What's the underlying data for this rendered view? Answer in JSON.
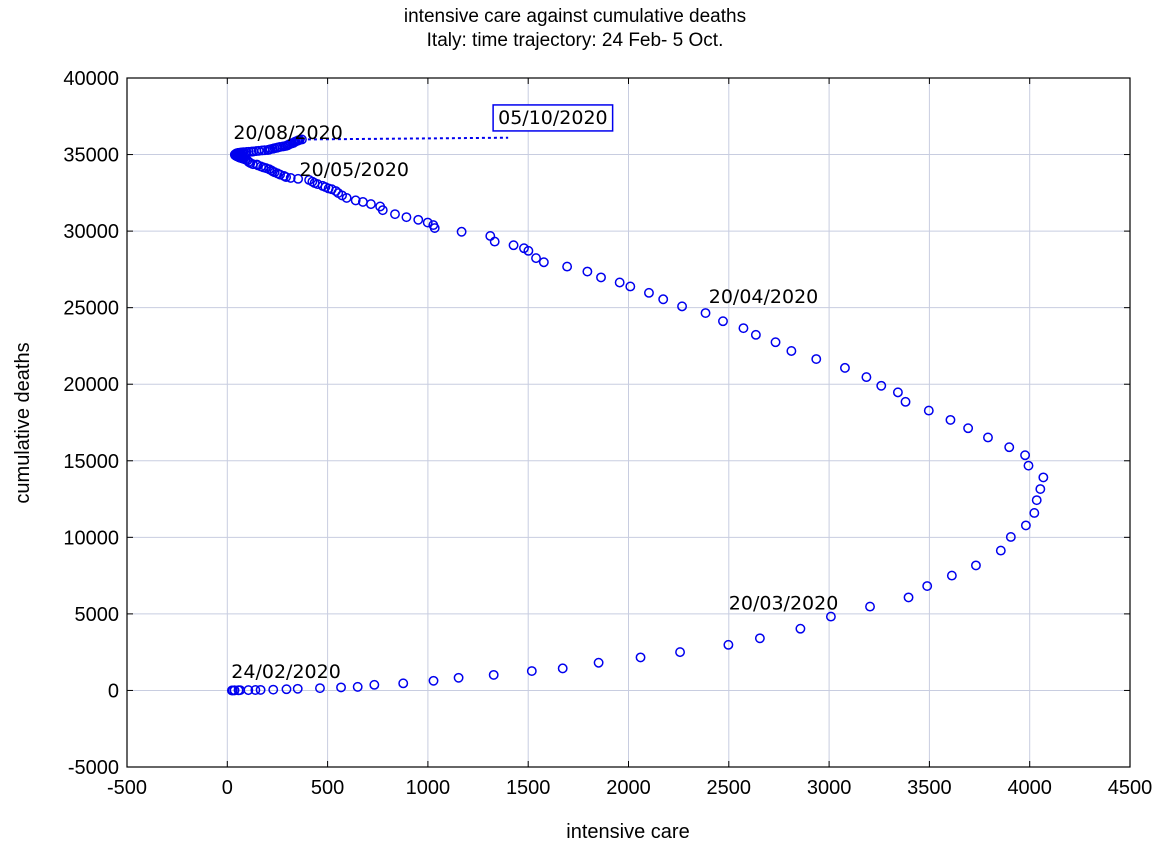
{
  "chart_data": {
    "type": "scatter",
    "title": "intensive care against cumulative deaths",
    "subtitle": "Italy: time trajectory: 24 Feb- 5 Oct.",
    "xlabel": "intensive care",
    "ylabel": "cumulative deaths",
    "xlim": [
      -500,
      4500
    ],
    "ylim": [
      -5000,
      40000
    ],
    "xticks": [
      -500,
      0,
      500,
      1000,
      1500,
      2000,
      2500,
      3000,
      3500,
      4000,
      4500
    ],
    "yticks": [
      -5000,
      0,
      5000,
      10000,
      15000,
      20000,
      25000,
      30000,
      35000,
      40000
    ],
    "xtick_labels": [
      "-500",
      "0",
      "500",
      "1000",
      "1500",
      "2000",
      "2500",
      "3000",
      "3500",
      "4000",
      "4500"
    ],
    "ytick_labels": [
      "-5000",
      "0",
      "5000",
      "10000",
      "15000",
      "20000",
      "25000",
      "30000",
      "35000",
      "40000"
    ],
    "grid": true,
    "marker": "circle",
    "color": "#0000ee",
    "points": [
      [
        23,
        0
      ],
      [
        26,
        2
      ],
      [
        35,
        7
      ],
      [
        36,
        10
      ],
      [
        56,
        12
      ],
      [
        64,
        17
      ],
      [
        105,
        21
      ],
      [
        140,
        29
      ],
      [
        166,
        34
      ],
      [
        229,
        52
      ],
      [
        295,
        79
      ],
      [
        351,
        107
      ],
      [
        462,
        148
      ],
      [
        567,
        197
      ],
      [
        650,
        233
      ],
      [
        733,
        366
      ],
      [
        877,
        463
      ],
      [
        1028,
        631
      ],
      [
        1153,
        827
      ],
      [
        1328,
        1016
      ],
      [
        1518,
        1266
      ],
      [
        1672,
        1441
      ],
      [
        1851,
        1809
      ],
      [
        2060,
        2158
      ],
      [
        2257,
        2503
      ],
      [
        2498,
        2978
      ],
      [
        2655,
        3405
      ],
      [
        2857,
        4032
      ],
      [
        3009,
        4825
      ],
      [
        3204,
        5476
      ],
      [
        3396,
        6077
      ],
      [
        3489,
        6820
      ],
      [
        3612,
        7503
      ],
      [
        3732,
        8165
      ],
      [
        3856,
        9134
      ],
      [
        3906,
        10023
      ],
      [
        3981,
        10779
      ],
      [
        4023,
        11591
      ],
      [
        4035,
        12428
      ],
      [
        4053,
        13155
      ],
      [
        4068,
        13915
      ],
      [
        3994,
        14681
      ],
      [
        3977,
        15362
      ],
      [
        3898,
        15887
      ],
      [
        3792,
        16523
      ],
      [
        3693,
        17127
      ],
      [
        3605,
        17669
      ],
      [
        3497,
        18279
      ],
      [
        3381,
        18849
      ],
      [
        3343,
        19468
      ],
      [
        3260,
        19899
      ],
      [
        3186,
        20465
      ],
      [
        3079,
        21067
      ],
      [
        2936,
        21645
      ],
      [
        2812,
        22170
      ],
      [
        2733,
        22745
      ],
      [
        2635,
        23227
      ],
      [
        2573,
        23660
      ],
      [
        2471,
        24114
      ],
      [
        2384,
        24648
      ],
      [
        2267,
        25085
      ],
      [
        2173,
        25549
      ],
      [
        2102,
        25969
      ],
      [
        2009,
        26384
      ],
      [
        1956,
        26644
      ],
      [
        1863,
        26977
      ],
      [
        1795,
        27359
      ],
      [
        1694,
        27682
      ],
      [
        1578,
        27967
      ],
      [
        1539,
        28236
      ],
      [
        1501,
        28710
      ],
      [
        1479,
        28884
      ],
      [
        1427,
        29079
      ],
      [
        1333,
        29315
      ],
      [
        1311,
        29684
      ],
      [
        1168,
        29958
      ],
      [
        1034,
        30201
      ],
      [
        1027,
        30395
      ],
      [
        999,
        30560
      ],
      [
        952,
        30739
      ],
      [
        893,
        30911
      ],
      [
        836,
        31106
      ],
      [
        775,
        31368
      ],
      [
        762,
        31610
      ],
      [
        716,
        31763
      ],
      [
        676,
        31908
      ],
      [
        640,
        32007
      ],
      [
        595,
        32169
      ],
      [
        572,
        32330
      ],
      [
        553,
        32486
      ],
      [
        541,
        32616
      ],
      [
        521,
        32735
      ],
      [
        505,
        32785
      ],
      [
        489,
        32877
      ],
      [
        475,
        32955
      ],
      [
        450,
        33072
      ],
      [
        435,
        33142
      ],
      [
        424,
        33229
      ],
      [
        408,
        33340
      ],
      [
        353,
        33415
      ],
      [
        316,
        33475
      ],
      [
        293,
        33530
      ],
      [
        283,
        33601
      ],
      [
        263,
        33689
      ],
      [
        250,
        33774
      ],
      [
        236,
        33846
      ],
      [
        227,
        33899
      ],
      [
        220,
        33964
      ],
      [
        209,
        34043
      ],
      [
        193,
        34114
      ],
      [
        179,
        34167
      ],
      [
        168,
        34223
      ],
      [
        152,
        34301
      ],
      [
        148,
        34345
      ],
      [
        127,
        34371
      ],
      [
        115,
        34448
      ],
      [
        107,
        34514
      ],
      [
        100,
        34616
      ],
      [
        90,
        34675
      ],
      [
        82,
        34714
      ],
      [
        76,
        34744
      ],
      [
        71,
        34767
      ],
      [
        65,
        34788
      ],
      [
        59,
        34818
      ],
      [
        55,
        34854
      ],
      [
        50,
        34869
      ],
      [
        47,
        34899
      ],
      [
        45,
        34914
      ],
      [
        42,
        34938
      ],
      [
        40,
        34945
      ],
      [
        39,
        34967
      ],
      [
        38,
        34984
      ],
      [
        38,
        35002
      ],
      [
        41,
        35017
      ],
      [
        42,
        35042
      ],
      [
        44,
        35058
      ],
      [
        46,
        35072
      ],
      [
        49,
        35092
      ],
      [
        53,
        35097
      ],
      [
        56,
        35102
      ],
      [
        58,
        35112
      ],
      [
        63,
        35123
      ],
      [
        69,
        35130
      ],
      [
        75,
        35146
      ],
      [
        82,
        35154
      ],
      [
        96,
        35171
      ],
      [
        107,
        35181
      ],
      [
        121,
        35191
      ],
      [
        130,
        35205
      ],
      [
        145,
        35227
      ],
      [
        157,
        35246
      ],
      [
        173,
        35268
      ],
      [
        186,
        35284
      ],
      [
        202,
        35298
      ],
      [
        208,
        35316
      ],
      [
        216,
        35351
      ],
      [
        227,
        35380
      ],
      [
        235,
        35413
      ],
      [
        246,
        35440
      ],
      [
        252,
        35463
      ],
      [
        262,
        35497
      ],
      [
        278,
        35530
      ],
      [
        291,
        35562
      ],
      [
        299,
        35593
      ],
      [
        303,
        35628
      ],
      [
        309,
        35668
      ],
      [
        316,
        35711
      ],
      [
        323,
        35738
      ],
      [
        331,
        35767
      ],
      [
        335,
        35818
      ],
      [
        340,
        35850
      ],
      [
        348,
        35890
      ],
      [
        354,
        35926
      ],
      [
        360,
        35956
      ],
      [
        372,
        35986
      ]
    ],
    "trajectory_end": {
      "from": [
        372,
        35986
      ],
      "to": [
        1400,
        36100
      ]
    },
    "annotations": [
      {
        "text": "24/02/2020",
        "x": 20,
        "y": 800
      },
      {
        "text": "20/03/2020",
        "x": 2500,
        "y": 5300
      },
      {
        "text": "20/04/2020",
        "x": 2400,
        "y": 25300
      },
      {
        "text": "20/05/2020",
        "x": 360,
        "y": 33600
      },
      {
        "text": "20/08/2020",
        "x": 30,
        "y": 36000
      },
      {
        "text": "05/10/2020",
        "x": 1350,
        "y": 37000,
        "boxed": true
      }
    ]
  }
}
